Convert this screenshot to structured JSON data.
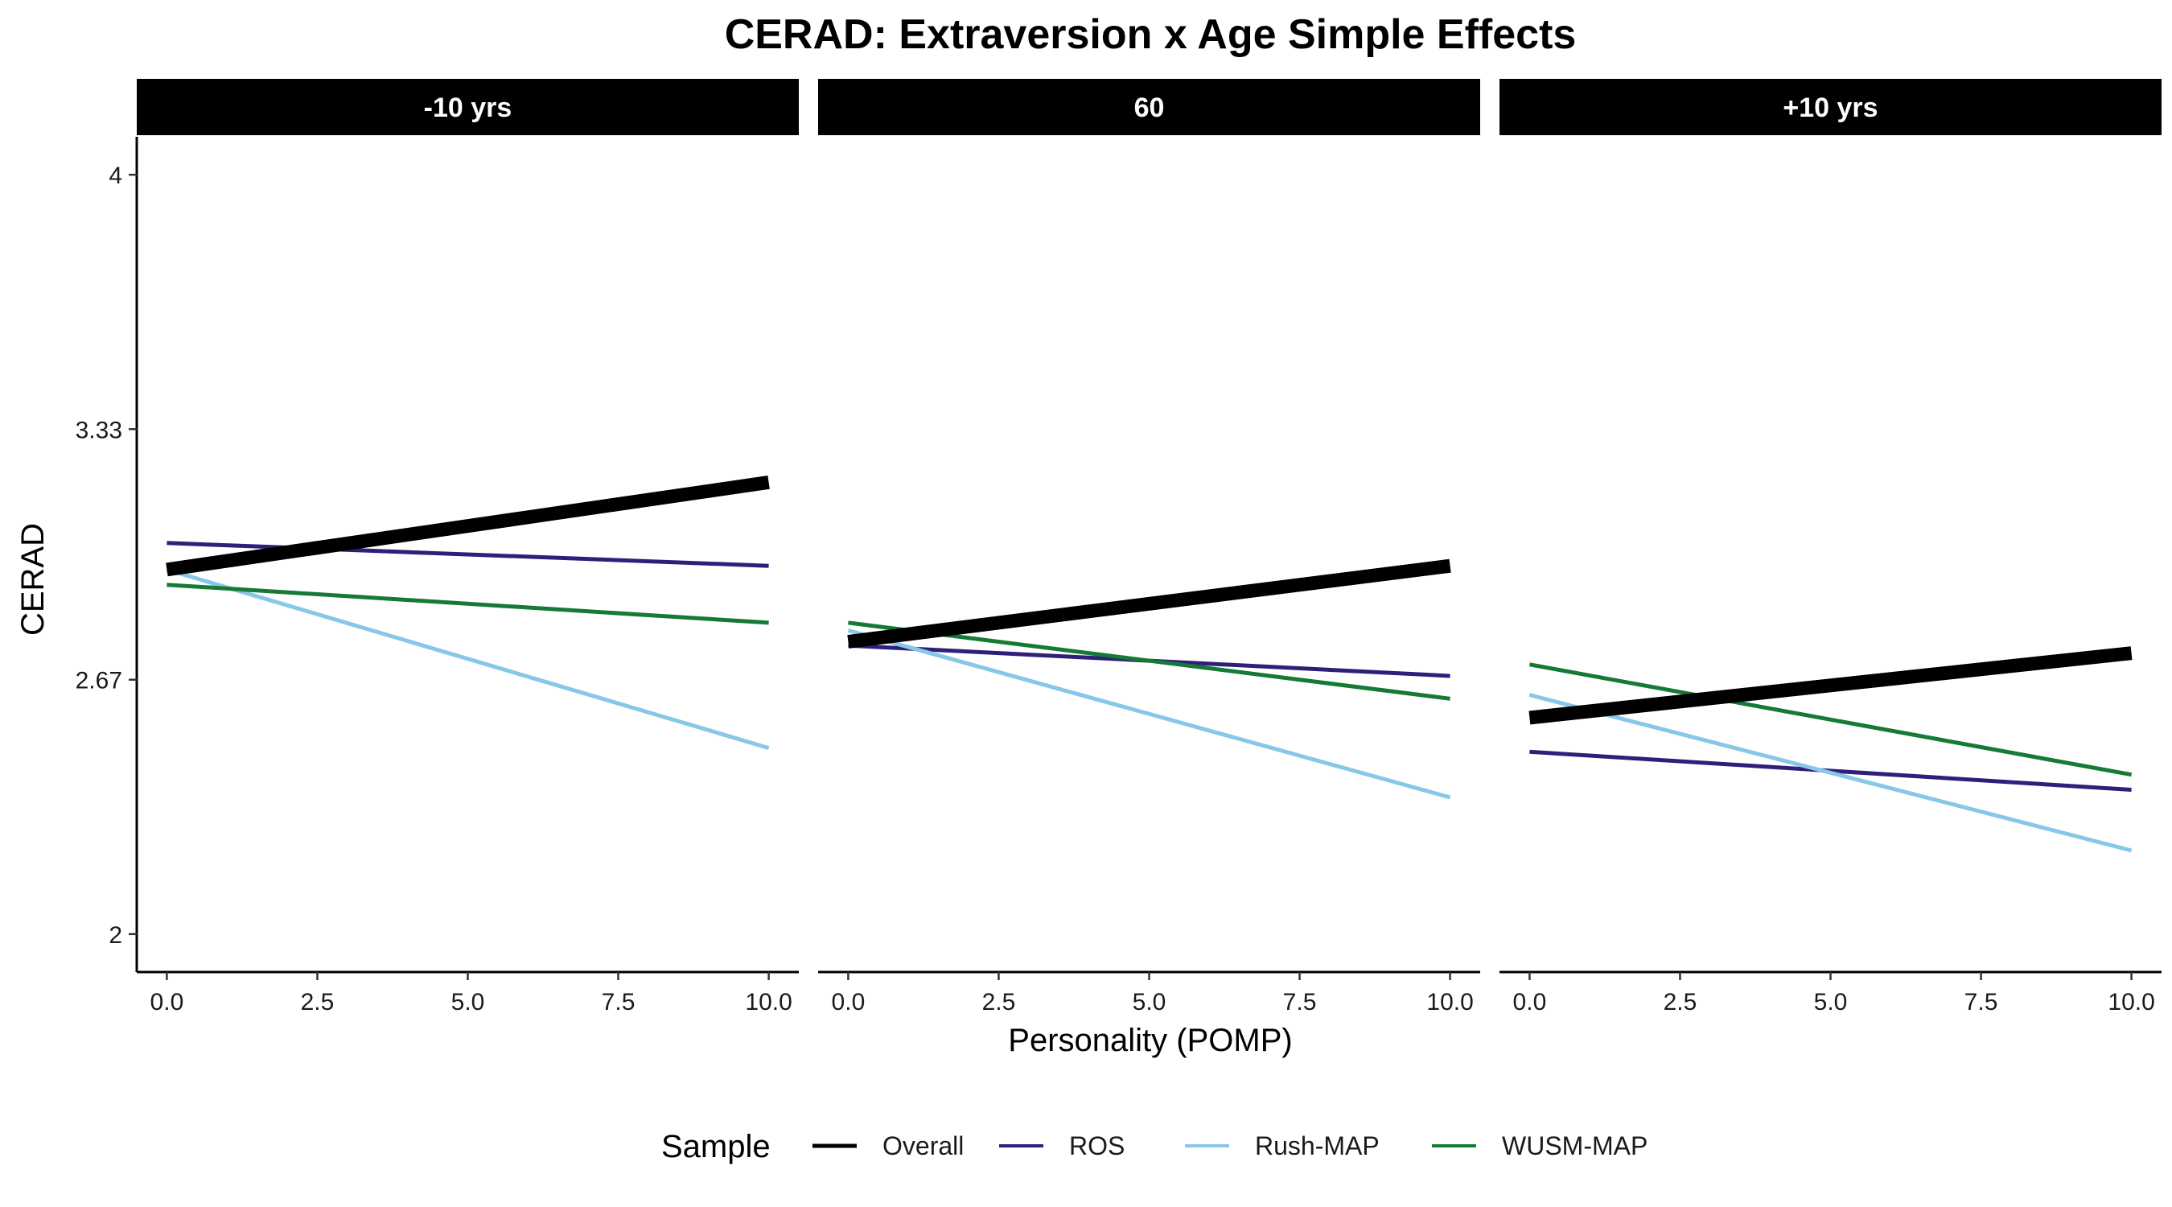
{
  "chart_data": {
    "type": "line",
    "title": "CERAD: Extraversion x Age Simple Effects",
    "xlabel": "Personality (POMP)",
    "ylabel": "CERAD",
    "xlim": [
      -0.5,
      10.5
    ],
    "ylim": [
      1.9,
      4.1
    ],
    "x_ticks": [
      0,
      2.5,
      5,
      7.5,
      10
    ],
    "x_tick_labels": [
      "0.0",
      "2.5",
      "5.0",
      "7.5",
      "10.0"
    ],
    "y_ticks": [
      2,
      2.67,
      3.33,
      4
    ],
    "y_tick_labels": [
      "2",
      "2.67",
      "3.33",
      "4"
    ],
    "grid": false,
    "legend": {
      "title": "Sample",
      "position": "bottom",
      "entries": [
        "Overall",
        "ROS",
        "Rush-MAP",
        "WUSM-MAP"
      ]
    },
    "colors": {
      "Overall": "#000000",
      "ROS": "#2e1f7a",
      "Rush-MAP": "#87c7ea",
      "WUSM-MAP": "#147a34"
    },
    "panels": [
      {
        "label": "-10 yrs",
        "series": [
          {
            "name": "ROS",
            "x": [
              0,
              10
            ],
            "y": [
              3.03,
              2.97
            ]
          },
          {
            "name": "Rush-MAP",
            "x": [
              0,
              10
            ],
            "y": [
              2.96,
              2.49
            ]
          },
          {
            "name": "WUSM-MAP",
            "x": [
              0,
              10
            ],
            "y": [
              2.92,
              2.82
            ]
          },
          {
            "name": "Overall",
            "x": [
              0,
              10
            ],
            "y": [
              2.96,
              3.19
            ]
          }
        ]
      },
      {
        "label": "60",
        "series": [
          {
            "name": "ROS",
            "x": [
              0,
              10
            ],
            "y": [
              2.76,
              2.68
            ]
          },
          {
            "name": "Rush-MAP",
            "x": [
              0,
              10
            ],
            "y": [
              2.8,
              2.36
            ]
          },
          {
            "name": "WUSM-MAP",
            "x": [
              0,
              10
            ],
            "y": [
              2.82,
              2.62
            ]
          },
          {
            "name": "Overall",
            "x": [
              0,
              10
            ],
            "y": [
              2.77,
              2.97
            ]
          }
        ]
      },
      {
        "label": "+10 yrs",
        "series": [
          {
            "name": "ROS",
            "x": [
              0,
              10
            ],
            "y": [
              2.48,
              2.38
            ]
          },
          {
            "name": "Rush-MAP",
            "x": [
              0,
              10
            ],
            "y": [
              2.63,
              2.22
            ]
          },
          {
            "name": "WUSM-MAP",
            "x": [
              0,
              10
            ],
            "y": [
              2.71,
              2.42
            ]
          },
          {
            "name": "Overall",
            "x": [
              0,
              10
            ],
            "y": [
              2.57,
              2.74
            ]
          }
        ]
      }
    ]
  }
}
